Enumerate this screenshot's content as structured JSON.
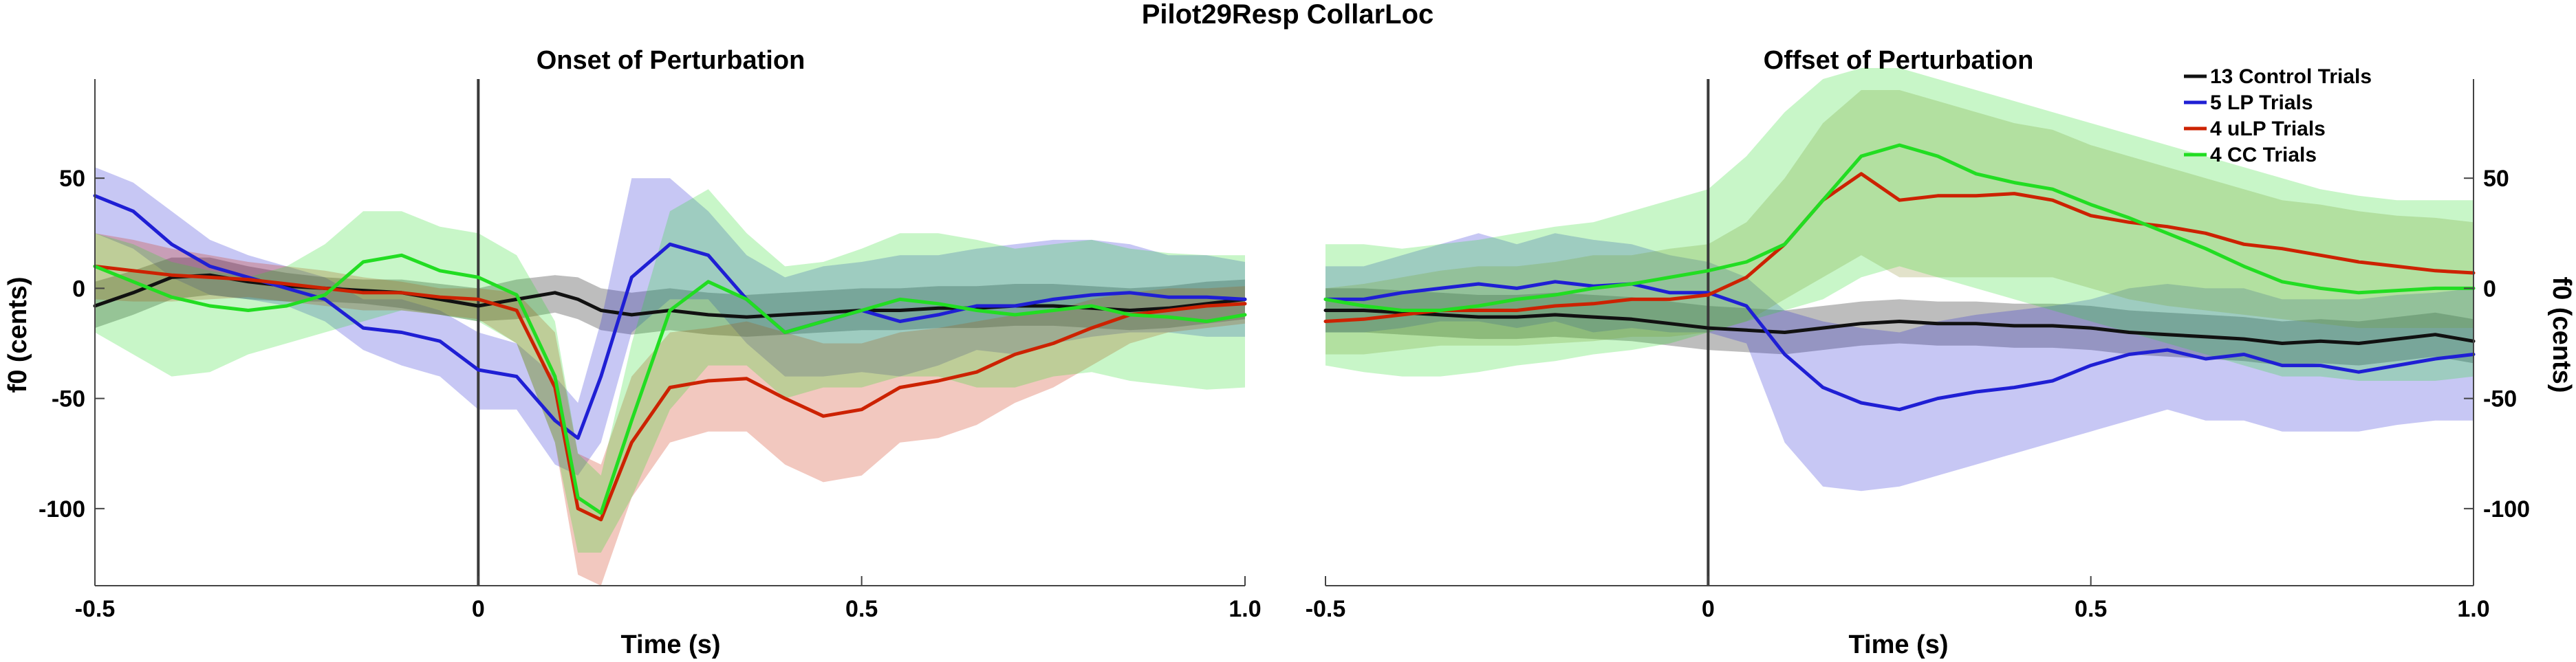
{
  "figure": {
    "title": "Pilot29Resp CollarLoc"
  },
  "colors": {
    "control": "#111111",
    "lp": "#1f1fd4",
    "ulp": "#cc2200",
    "cc": "#22dd22",
    "onset_line": "#3a3a3a"
  },
  "legend": {
    "placement": "top-right of right panel",
    "entries": [
      {
        "key": "control",
        "label": "13 Control Trials"
      },
      {
        "key": "lp",
        "label": "5 LP Trials"
      },
      {
        "key": "ulp",
        "label": "4 uLP Trials"
      },
      {
        "key": "cc",
        "label": "4 CC Trials"
      }
    ]
  },
  "chart_data": [
    {
      "type": "line",
      "title": "Onset of Perturbation",
      "xlabel": "Time (s)",
      "ylabel": "f0 (cents)",
      "ylabel_side": "left",
      "xlim": [
        -0.5,
        1.0
      ],
      "ylim": [
        -135,
        95
      ],
      "xticks": [
        -0.5,
        0,
        0.5,
        1.0
      ],
      "xtick_labels": [
        "-0.5",
        "0",
        "0.5",
        "1.0"
      ],
      "yticks": [
        50,
        0,
        -50,
        -100
      ],
      "ytick_labels": [
        "50",
        "0",
        "-50",
        "-100"
      ],
      "grid": false,
      "vline_x": 0,
      "x": [
        -0.5,
        -0.45,
        -0.4,
        -0.35,
        -0.3,
        -0.25,
        -0.2,
        -0.15,
        -0.1,
        -0.05,
        0,
        0.05,
        0.1,
        0.13,
        0.16,
        0.2,
        0.25,
        0.3,
        0.35,
        0.4,
        0.45,
        0.5,
        0.55,
        0.6,
        0.65,
        0.7,
        0.75,
        0.8,
        0.85,
        0.9,
        0.95,
        1.0
      ],
      "series": [
        {
          "key": "control",
          "name": "13 Control Trials",
          "mean": [
            -8,
            -2,
            5,
            6,
            3,
            1,
            0,
            -1,
            -2,
            -5,
            -8,
            -5,
            -2,
            -5,
            -10,
            -12,
            -10,
            -12,
            -13,
            -12,
            -11,
            -10,
            -10,
            -9,
            -9,
            -8,
            -8,
            -9,
            -10,
            -9,
            -7,
            -5
          ],
          "upper": [
            3,
            8,
            14,
            14,
            10,
            7,
            5,
            4,
            4,
            2,
            0,
            4,
            6,
            5,
            0,
            -2,
            0,
            -2,
            -3,
            -2,
            -1,
            0,
            0,
            1,
            1,
            2,
            2,
            1,
            0,
            1,
            3,
            4
          ],
          "lower": [
            -18,
            -12,
            -5,
            -3,
            -5,
            -6,
            -6,
            -7,
            -9,
            -12,
            -15,
            -14,
            -11,
            -14,
            -19,
            -21,
            -19,
            -21,
            -22,
            -21,
            -20,
            -19,
            -19,
            -18,
            -18,
            -17,
            -17,
            -18,
            -19,
            -18,
            -16,
            -14
          ]
        },
        {
          "key": "lp",
          "name": "5 LP Trials",
          "mean": [
            42,
            35,
            20,
            10,
            5,
            0,
            -5,
            -18,
            -20,
            -24,
            -37,
            -40,
            -60,
            -68,
            -40,
            5,
            20,
            15,
            -5,
            -20,
            -15,
            -10,
            -15,
            -12,
            -8,
            -8,
            -5,
            -3,
            -2,
            -4,
            -4,
            -5
          ],
          "upper": [
            55,
            48,
            35,
            22,
            15,
            10,
            5,
            -5,
            -5,
            -10,
            -20,
            -25,
            -40,
            -52,
            -15,
            50,
            50,
            35,
            15,
            5,
            10,
            12,
            15,
            15,
            18,
            20,
            22,
            22,
            20,
            15,
            15,
            12
          ],
          "lower": [
            25,
            18,
            5,
            -3,
            -5,
            -8,
            -15,
            -28,
            -35,
            -40,
            -55,
            -55,
            -80,
            -85,
            -70,
            -20,
            -5,
            -5,
            -25,
            -40,
            -40,
            -38,
            -40,
            -35,
            -28,
            -30,
            -25,
            -22,
            -20,
            -20,
            -22,
            -22
          ]
        },
        {
          "key": "ulp",
          "name": "4 uLP Trials",
          "mean": [
            10,
            8,
            6,
            5,
            4,
            2,
            0,
            -2,
            -2,
            -4,
            -5,
            -10,
            -45,
            -100,
            -105,
            -70,
            -45,
            -42,
            -41,
            -50,
            -58,
            -55,
            -45,
            -42,
            -38,
            -30,
            -25,
            -18,
            -12,
            -10,
            -8,
            -7
          ],
          "upper": [
            25,
            22,
            18,
            15,
            12,
            10,
            8,
            5,
            3,
            0,
            0,
            -2,
            -20,
            -75,
            -80,
            -40,
            -20,
            -18,
            -15,
            -20,
            -25,
            -25,
            -20,
            -18,
            -15,
            -12,
            -10,
            -5,
            -2,
            0,
            0,
            1
          ],
          "lower": [
            -5,
            -6,
            -6,
            -5,
            -4,
            -6,
            -8,
            -10,
            -10,
            -12,
            -14,
            -25,
            -70,
            -130,
            -135,
            -95,
            -70,
            -65,
            -65,
            -80,
            -88,
            -85,
            -70,
            -68,
            -62,
            -52,
            -45,
            -35,
            -25,
            -20,
            -18,
            -16
          ]
        },
        {
          "key": "cc",
          "name": "4 CC Trials",
          "mean": [
            10,
            3,
            -4,
            -8,
            -10,
            -8,
            -3,
            12,
            15,
            8,
            5,
            -3,
            -40,
            -95,
            -102,
            -60,
            -10,
            3,
            -5,
            -20,
            -15,
            -10,
            -5,
            -7,
            -10,
            -12,
            -10,
            -8,
            -12,
            -13,
            -15,
            -12
          ],
          "upper": [
            25,
            20,
            12,
            8,
            5,
            10,
            20,
            35,
            35,
            28,
            25,
            15,
            -15,
            -75,
            -85,
            -25,
            35,
            45,
            25,
            10,
            12,
            18,
            25,
            25,
            22,
            18,
            20,
            22,
            18,
            16,
            15,
            15
          ],
          "lower": [
            -20,
            -30,
            -40,
            -38,
            -30,
            -25,
            -20,
            -15,
            -10,
            -12,
            -15,
            -25,
            -70,
            -120,
            -120,
            -95,
            -55,
            -35,
            -35,
            -50,
            -45,
            -45,
            -40,
            -40,
            -45,
            -45,
            -40,
            -38,
            -42,
            -44,
            -46,
            -45
          ]
        }
      ]
    },
    {
      "type": "line",
      "title": "Offset of Perturbation",
      "xlabel": "Time (s)",
      "ylabel": "f0 (cents)",
      "ylabel_side": "right",
      "xlim": [
        -0.5,
        1.0
      ],
      "ylim": [
        -135,
        95
      ],
      "xticks": [
        -0.5,
        0,
        0.5,
        1.0
      ],
      "xtick_labels": [
        "-0.5",
        "0",
        "0.5",
        "1.0"
      ],
      "yticks": [
        50,
        0,
        -50,
        -100
      ],
      "ytick_labels": [
        "50",
        "0",
        "-50",
        "-100"
      ],
      "grid": false,
      "vline_x": 0,
      "x": [
        -0.5,
        -0.45,
        -0.4,
        -0.35,
        -0.3,
        -0.25,
        -0.2,
        -0.15,
        -0.1,
        -0.05,
        0,
        0.05,
        0.1,
        0.15,
        0.2,
        0.25,
        0.3,
        0.35,
        0.4,
        0.45,
        0.5,
        0.55,
        0.6,
        0.65,
        0.7,
        0.75,
        0.8,
        0.85,
        0.9,
        0.95,
        1.0
      ],
      "series": [
        {
          "key": "control",
          "name": "13 Control Trials",
          "mean": [
            -10,
            -10,
            -11,
            -12,
            -13,
            -13,
            -12,
            -13,
            -14,
            -16,
            -18,
            -19,
            -20,
            -18,
            -16,
            -15,
            -16,
            -16,
            -17,
            -17,
            -18,
            -20,
            -21,
            -22,
            -23,
            -25,
            -24,
            -25,
            -23,
            -21,
            -24
          ],
          "upper": [
            0,
            0,
            -1,
            -2,
            -3,
            -3,
            -2,
            -3,
            -4,
            -6,
            -8,
            -9,
            -10,
            -8,
            -6,
            -5,
            -6,
            -6,
            -7,
            -7,
            -8,
            -10,
            -11,
            -12,
            -13,
            -15,
            -14,
            -15,
            -13,
            -11,
            -14
          ],
          "lower": [
            -20,
            -20,
            -21,
            -22,
            -23,
            -23,
            -22,
            -23,
            -24,
            -26,
            -28,
            -29,
            -30,
            -28,
            -26,
            -25,
            -26,
            -26,
            -27,
            -27,
            -28,
            -30,
            -31,
            -32,
            -33,
            -35,
            -34,
            -35,
            -33,
            -31,
            -34
          ]
        },
        {
          "key": "lp",
          "name": "5 LP Trials",
          "mean": [
            -5,
            -5,
            -2,
            0,
            2,
            0,
            3,
            1,
            2,
            -2,
            -2,
            -8,
            -30,
            -45,
            -52,
            -55,
            -50,
            -47,
            -45,
            -42,
            -35,
            -30,
            -28,
            -32,
            -30,
            -35,
            -35,
            -38,
            -35,
            -32,
            -30
          ],
          "upper": [
            10,
            10,
            15,
            20,
            25,
            20,
            25,
            22,
            20,
            15,
            12,
            5,
            -10,
            -15,
            -18,
            -20,
            -15,
            -12,
            -10,
            -8,
            -5,
            0,
            2,
            0,
            0,
            -5,
            -5,
            -5,
            -3,
            -2,
            0
          ],
          "lower": [
            -20,
            -20,
            -18,
            -15,
            -15,
            -18,
            -15,
            -20,
            -18,
            -20,
            -20,
            -25,
            -70,
            -90,
            -92,
            -90,
            -85,
            -80,
            -75,
            -70,
            -65,
            -60,
            -55,
            -60,
            -60,
            -65,
            -65,
            -65,
            -62,
            -60,
            -60
          ]
        },
        {
          "key": "ulp",
          "name": "4 uLP Trials",
          "mean": [
            -15,
            -14,
            -12,
            -10,
            -10,
            -10,
            -8,
            -7,
            -5,
            -5,
            -3,
            5,
            20,
            40,
            52,
            40,
            42,
            42,
            43,
            40,
            33,
            30,
            28,
            25,
            20,
            18,
            15,
            12,
            10,
            8,
            7
          ],
          "upper": [
            0,
            2,
            5,
            8,
            10,
            10,
            12,
            15,
            15,
            18,
            20,
            30,
            50,
            75,
            90,
            90,
            85,
            80,
            75,
            72,
            65,
            60,
            55,
            50,
            45,
            40,
            38,
            35,
            33,
            32,
            30
          ],
          "lower": [
            -30,
            -30,
            -28,
            -26,
            -26,
            -26,
            -25,
            -24,
            -22,
            -22,
            -20,
            -15,
            -5,
            5,
            15,
            5,
            5,
            5,
            5,
            5,
            0,
            -5,
            -8,
            -10,
            -12,
            -14,
            -16,
            -18,
            -18,
            -18,
            -18
          ],
          "band_color": "#8a8a2a"
        },
        {
          "key": "cc",
          "name": "4 CC Trials",
          "mean": [
            -5,
            -8,
            -10,
            -10,
            -8,
            -5,
            -3,
            0,
            2,
            5,
            8,
            12,
            20,
            40,
            60,
            65,
            60,
            52,
            48,
            45,
            38,
            32,
            25,
            18,
            10,
            3,
            0,
            -2,
            -1,
            0,
            0
          ],
          "upper": [
            20,
            20,
            18,
            20,
            22,
            25,
            28,
            30,
            35,
            40,
            45,
            60,
            80,
            95,
            100,
            100,
            95,
            90,
            85,
            80,
            75,
            70,
            65,
            60,
            55,
            50,
            45,
            42,
            40,
            40,
            40
          ],
          "lower": [
            -35,
            -38,
            -40,
            -40,
            -38,
            -35,
            -33,
            -30,
            -28,
            -25,
            -20,
            -15,
            -10,
            -5,
            5,
            10,
            5,
            0,
            -5,
            -10,
            -15,
            -20,
            -25,
            -30,
            -35,
            -40,
            -40,
            -42,
            -42,
            -42,
            -40
          ]
        }
      ]
    }
  ]
}
